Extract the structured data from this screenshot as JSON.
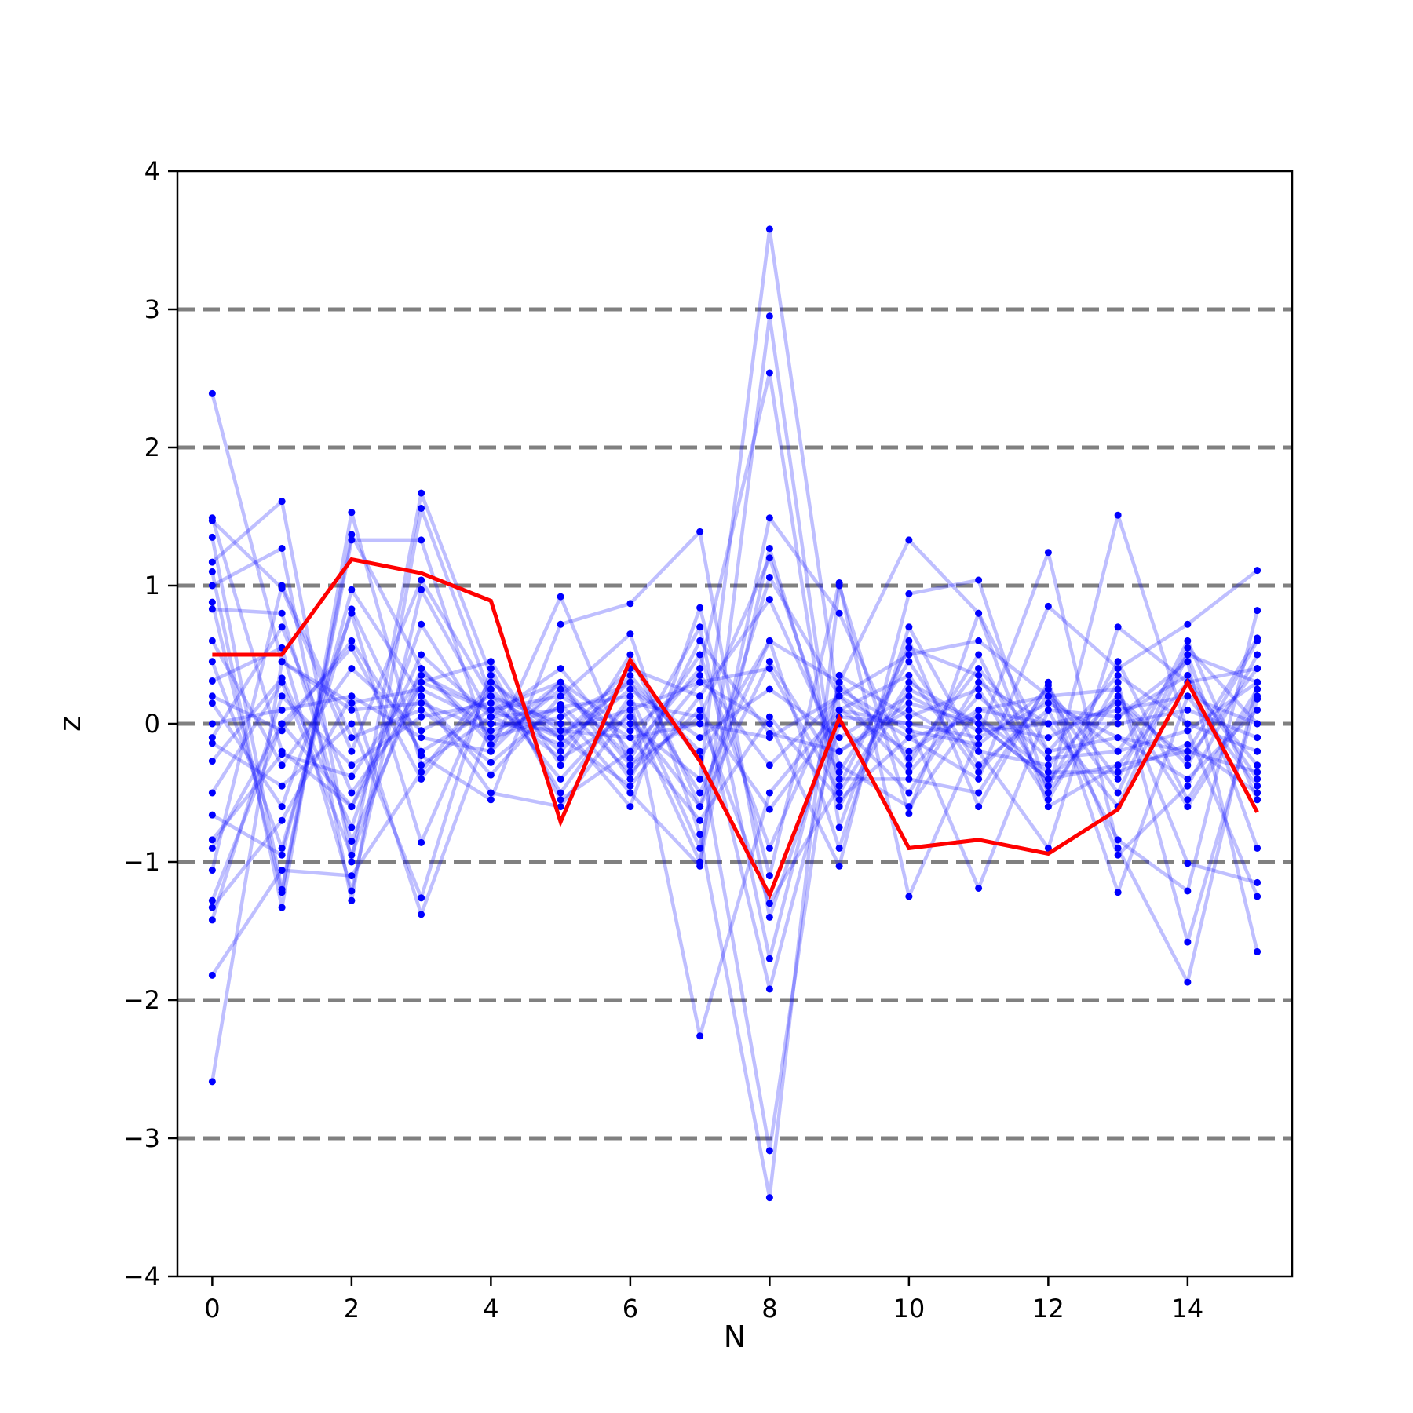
{
  "chart_data": {
    "type": "line",
    "title": "",
    "xlabel": "N",
    "ylabel": "z",
    "xlim": [
      -0.5,
      15.5
    ],
    "ylim": [
      -4,
      4
    ],
    "xticks": [
      0,
      2,
      4,
      6,
      8,
      10,
      12,
      14
    ],
    "yticks": [
      -4,
      -3,
      -2,
      -1,
      0,
      1,
      2,
      3,
      4
    ],
    "xtick_labels": [
      "0",
      "2",
      "4",
      "6",
      "8",
      "10",
      "12",
      "14"
    ],
    "ytick_labels": [
      "−4",
      "−3",
      "−2",
      "−1",
      "0",
      "1",
      "2",
      "3",
      "4"
    ],
    "reference_lines_y": [
      -3,
      -2,
      -1,
      0,
      1,
      2,
      3
    ],
    "reference_line_style": "dashed",
    "grid": false,
    "legend": "none",
    "colors": {
      "background_series": "#0000ff",
      "highlight_series": "#ff0000",
      "reference_line": "#808080",
      "axis": "#000000"
    },
    "x": [
      0,
      1,
      2,
      3,
      4,
      5,
      6,
      7,
      8,
      9,
      10,
      11,
      12,
      13,
      14,
      15
    ],
    "highlight": {
      "values": [
        0.5,
        0.5,
        1.19,
        1.09,
        0.89,
        -0.71,
        0.46,
        -0.27,
        -1.24,
        0.04,
        -0.9,
        -0.84,
        -0.94,
        -0.62,
        0.3,
        -0.64
      ]
    },
    "series": [
      {
        "values": [
          2.39,
          0.45,
          0.15,
          0.25,
          0.0,
          -0.05,
          0.1,
          0.3,
          0.4,
          -0.5,
          0.3,
          0.0,
          -0.4,
          -0.3,
          -0.2,
          -0.35
        ]
      },
      {
        "values": [
          1.49,
          -0.2,
          -0.6,
          0.3,
          0.1,
          0.2,
          -0.1,
          0.0,
          -0.1,
          0.2,
          0.5,
          0.6,
          0.2,
          -0.2,
          0.5,
          0.3
        ]
      },
      {
        "values": [
          1.47,
          0.98,
          -0.2,
          1.04,
          0.2,
          -0.1,
          0.3,
          -0.5,
          0.6,
          -0.9,
          0.7,
          -0.2,
          -0.9,
          0.7,
          0.3,
          0.4
        ]
      },
      {
        "values": [
          1.35,
          -1.2,
          1.37,
          0.4,
          -0.1,
          0.3,
          -0.3,
          0.05,
          1.2,
          -0.3,
          -0.6,
          0.1,
          0.2,
          -0.5,
          0.55,
          0.0
        ]
      },
      {
        "values": [
          1.17,
          1.61,
          -1.0,
          1.67,
          0.35,
          -0.5,
          0.2,
          -0.9,
          1.49,
          0.8,
          -0.3,
          0.5,
          -0.5,
          0.2,
          -0.6,
          0.2
        ]
      },
      {
        "values": [
          1.1,
          -1.33,
          1.53,
          -0.3,
          0.05,
          0.4,
          -0.2,
          0.7,
          -1.7,
          0.3,
          1.33,
          0.8,
          -0.2,
          -0.1,
          -0.2,
          0.62
        ]
      },
      {
        "values": [
          1.0,
          1.27,
          -1.28,
          1.56,
          0.2,
          0.0,
          -0.6,
          0.84,
          -1.1,
          1.02,
          -1.25,
          -0.1,
          1.24,
          -0.9,
          -1.87,
          0.3
        ]
      },
      {
        "values": [
          0.88,
          -1.22,
          1.33,
          1.33,
          -0.2,
          0.92,
          -0.3,
          0.3,
          0.0,
          -1.03,
          0.94,
          1.04,
          -0.5,
          1.51,
          -0.05,
          -1.25
        ]
      },
      {
        "values": [
          0.83,
          0.8,
          -0.85,
          0.3,
          0.45,
          -0.3,
          0.5,
          -0.6,
          1.06,
          0.2,
          -0.1,
          -0.4,
          0.85,
          0.4,
          0.72,
          1.11
        ]
      },
      {
        "values": [
          0.45,
          -0.9,
          0.83,
          -0.23,
          -0.55,
          0.72,
          0.87,
          1.39,
          -1.4,
          0.1,
          0.0,
          -1.19,
          0.1,
          -0.84,
          -1.21,
          0.82
        ]
      },
      {
        "values": [
          0.31,
          0.55,
          -1.21,
          0.97,
          0.05,
          0.1,
          -0.5,
          -1.03,
          2.95,
          -0.6,
          0.25,
          0.0,
          -0.4,
          0.05,
          0.45,
          -1.65
        ]
      },
      {
        "values": [
          0.15,
          -0.6,
          0.8,
          -0.86,
          0.3,
          -0.1,
          0.4,
          0.2,
          -1.92,
          0.0,
          -0.5,
          0.3,
          0.0,
          -0.6,
          0.5,
          -0.9
        ]
      },
      {
        "values": [
          0.0,
          0.1,
          0.2,
          -1.38,
          0.0,
          0.0,
          0.0,
          -0.4,
          3.58,
          0.1,
          -0.2,
          0.1,
          0.0,
          0.0,
          0.1,
          -0.1
        ]
      },
      {
        "values": [
          -0.1,
          0.7,
          -0.5,
          0.2,
          -0.37,
          0.2,
          0.65,
          -0.8,
          -3.43,
          1.0,
          -0.65,
          0.8,
          -0.6,
          -0.3,
          0.3,
          -0.3
        ]
      },
      {
        "values": [
          -0.14,
          -0.45,
          0.0,
          -1.26,
          0.4,
          -0.55,
          -0.2,
          0.4,
          2.54,
          -0.75,
          0.6,
          -0.6,
          0.3,
          -0.95,
          -0.45,
          0.5
        ]
      },
      {
        "values": [
          -0.27,
          0.33,
          -0.75,
          0.72,
          -0.1,
          0.05,
          0.3,
          -0.2,
          -3.09,
          0.35,
          0.05,
          0.25,
          -0.55,
          0.3,
          -1.58,
          0.18
        ]
      },
      {
        "values": [
          -0.66,
          -0.95,
          0.97,
          0.2,
          -0.5,
          -0.6,
          0.1,
          -1.0,
          1.27,
          -0.4,
          -0.4,
          -0.5,
          0.28,
          -1.22,
          0.2,
          -0.45
        ]
      },
      {
        "values": [
          -0.84,
          -0.22,
          -0.38,
          0.35,
          0.1,
          0.3,
          -0.4,
          0.6,
          -0.07,
          -0.2,
          0.1,
          -0.2,
          -0.3,
          0.2,
          -0.3,
          0.6
        ]
      },
      {
        "values": [
          -0.9,
          0.0,
          0.55,
          -0.4,
          0.25,
          -0.2,
          0.35,
          -0.25,
          0.6,
          0.3,
          -0.25,
          0.4,
          -0.2,
          0.35,
          0.0,
          -0.2
        ]
      },
      {
        "values": [
          -1.06,
          1.0,
          -0.1,
          0.1,
          -0.28,
          0.14,
          -0.35,
          0.1,
          -0.62,
          0.05,
          0.0,
          -0.1,
          0.15,
          -0.1,
          -0.4,
          0.1
        ]
      },
      {
        "values": [
          -1.28,
          0.0,
          -0.6,
          0.5,
          0.05,
          -0.15,
          0.25,
          -0.1,
          0.25,
          -0.1,
          0.2,
          -0.05,
          0.0,
          0.1,
          0.2,
          0.0
        ]
      },
      {
        "values": [
          -1.33,
          -0.7,
          0.2,
          -0.1,
          -0.2,
          0.3,
          -0.05,
          0.35,
          -0.3,
          0.2,
          -0.35,
          0.2,
          -0.25,
          -0.2,
          -0.05,
          0.3
        ]
      },
      {
        "values": [
          -1.42,
          0.2,
          -0.3,
          0.05,
          0.15,
          -0.25,
          0.05,
          -0.6,
          0.45,
          -0.35,
          0.45,
          -0.3,
          0.1,
          0.05,
          0.35,
          -0.4
        ]
      },
      {
        "values": [
          -1.82,
          -1.06,
          -1.1,
          -0.35,
          0.3,
          -0.05,
          -0.1,
          -0.7,
          0.05,
          -0.55,
          -0.1,
          0.05,
          -0.35,
          -0.35,
          -0.15,
          -0.5
        ]
      },
      {
        "values": [
          -2.59,
          0.45,
          0.1,
          0.15,
          -0.05,
          0.12,
          0.2,
          -2.26,
          -0.5,
          0.1,
          0.35,
          -0.35,
          0.2,
          0.25,
          -1.01,
          -1.15
        ]
      },
      {
        "values": [
          0.6,
          -0.3,
          0.4,
          -0.05,
          0.2,
          -0.4,
          0.15,
          0.05,
          -1.3,
          -0.45,
          0.55,
          0.35,
          -0.45,
          0.45,
          -0.55,
          0.25
        ]
      },
      {
        "values": [
          -0.5,
          0.3,
          -0.95,
          0.4,
          -0.15,
          0.25,
          -0.25,
          0.5,
          -0.9,
          0.25,
          -0.05,
          -0.15,
          0.25,
          -0.4,
          0.6,
          -0.55
        ]
      },
      {
        "values": [
          0.2,
          -0.05,
          0.6,
          -0.2,
          0.1,
          -0.1,
          -0.45,
          0.2,
          0.9,
          -0.2,
          0.15,
          0.0,
          -0.1,
          0.15,
          -0.25,
          0.4
        ]
      }
    ]
  }
}
